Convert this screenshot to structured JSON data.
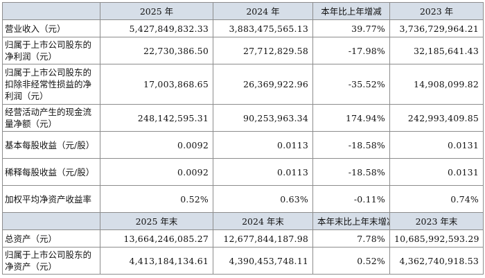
{
  "header1": [
    "",
    "2025 年",
    "2024 年",
    "本年比上年增减",
    "2023 年"
  ],
  "rows1": [
    {
      "label": "营业收入（元）",
      "values": [
        "5,427,849,832.33",
        "3,883,475,565.13",
        "39.77%",
        "3,736,729,964.21"
      ],
      "h": "h1"
    },
    {
      "label": "归属于上市公司股东的净利润（元）",
      "values": [
        "22,730,386.50",
        "27,712,829.58",
        "-17.98%",
        "32,185,641.43"
      ],
      "h": "h2"
    },
    {
      "label": "归属于上市公司股东的扣除非经常性损益的净利润（元）",
      "values": [
        "17,003,868.65",
        "26,369,922.96",
        "-35.52%",
        "14,908,099.82"
      ],
      "h": "h3"
    },
    {
      "label": "经营活动产生的现金流量净额（元）",
      "values": [
        "248,142,595.31",
        "90,253,963.34",
        "174.94%",
        "242,993,409.85"
      ],
      "h": "h2"
    },
    {
      "label": "基本每股收益（元/股）",
      "values": [
        "0.0092",
        "0.0113",
        "-18.58%",
        "0.0131"
      ],
      "h": "h2"
    },
    {
      "label": "稀释每股收益（元/股）",
      "values": [
        "0.0092",
        "0.0113",
        "-18.58%",
        "0.0131"
      ],
      "h": "h2"
    },
    {
      "label": "加权平均净资产收益率",
      "values": [
        "0.52%",
        "0.63%",
        "-0.11%",
        "0.74%"
      ],
      "h": "h2"
    }
  ],
  "header2": [
    "",
    "2025 年末",
    "2024 年末",
    "本年末比上年末增减",
    "2023 年末"
  ],
  "rows2": [
    {
      "label": "总资产（元）",
      "values": [
        "13,664,246,085.27",
        "12,677,844,187.98",
        "7.78%",
        "10,685,992,593.29"
      ],
      "h": "h1"
    },
    {
      "label": "归属于上市公司股东的净资产（元）",
      "values": [
        "4,413,184,134.61",
        "4,390,453,748.11",
        "0.52%",
        "4,362,740,918.53"
      ],
      "h": "h2"
    }
  ]
}
